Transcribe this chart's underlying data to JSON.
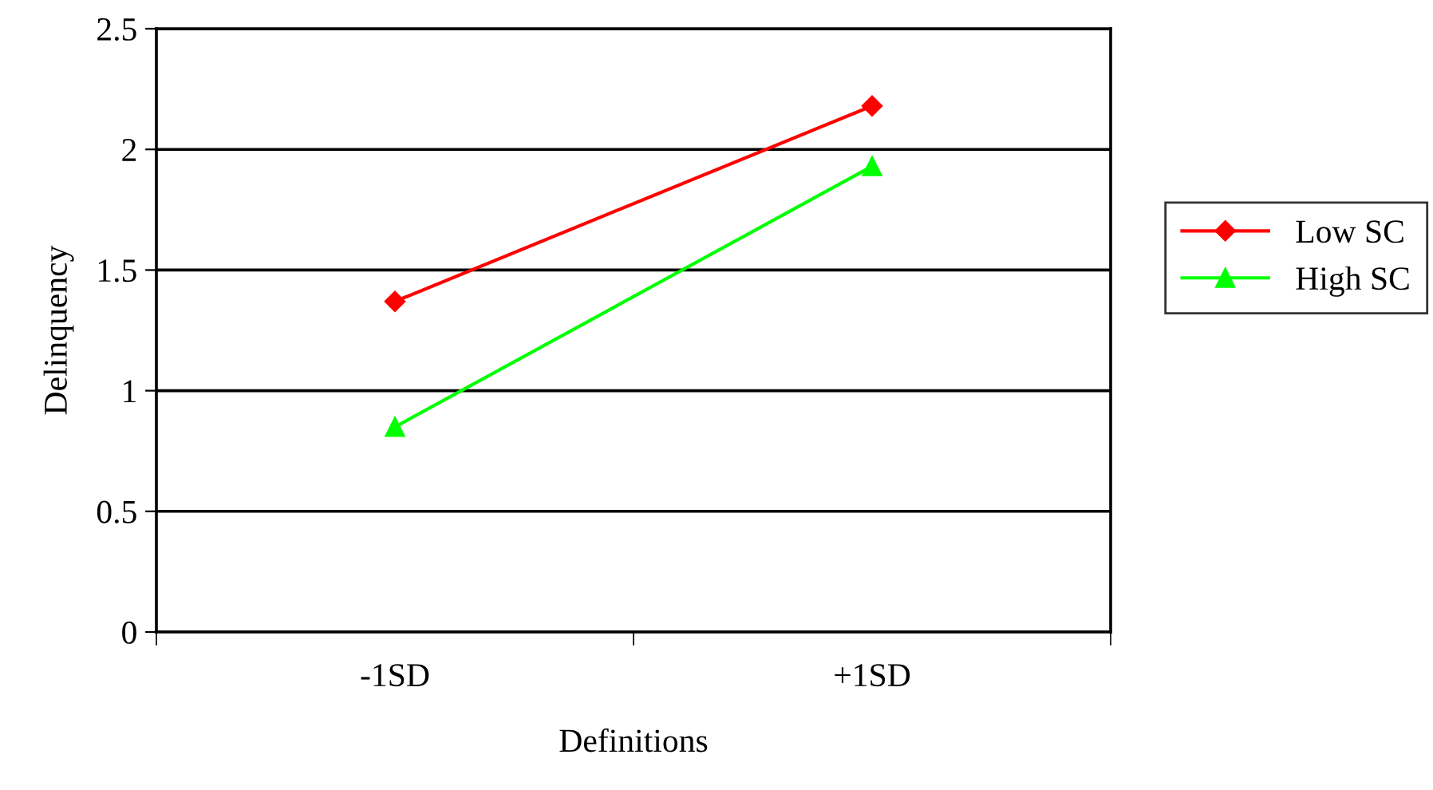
{
  "chart_data": {
    "type": "line",
    "xlabel": "Definitions",
    "ylabel": "Delinquency",
    "categories": [
      "-1SD",
      "+1SD"
    ],
    "series": [
      {
        "name": "Low SC",
        "color": "#ff0000",
        "marker": "diamond",
        "values": [
          1.37,
          2.18
        ]
      },
      {
        "name": "High SC",
        "color": "#00ff00",
        "marker": "triangle",
        "values": [
          0.85,
          1.93
        ]
      }
    ],
    "ylim": [
      0,
      2.5
    ],
    "yticks": [
      0,
      0.5,
      1,
      1.5,
      2,
      2.5
    ],
    "grid": "y",
    "legend": "right",
    "line_style": "solid"
  }
}
